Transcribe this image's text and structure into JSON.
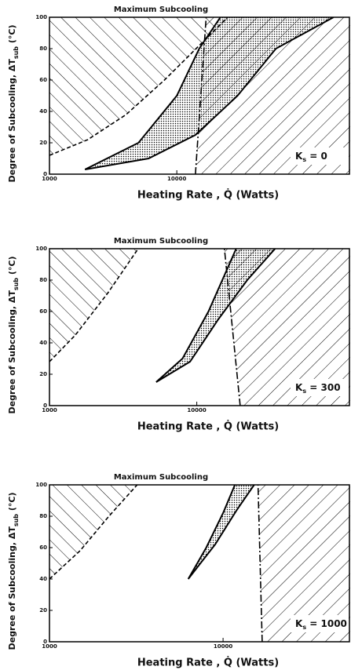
{
  "chart_data": [
    {
      "type": "line",
      "title": "Maximum    Subcooling",
      "x_label": "Heating    Rate ,  Q̇  (Watts)",
      "y_label": "Degree of Subcooling, ΔT",
      "y_label_sub": "sub",
      "y_label_unit": " (°C)",
      "annotation_symbol": "K",
      "annotation_sub": "s",
      "annotation_text": " =      0",
      "log_x": true,
      "xlim": [
        1000,
        230000
      ],
      "xticks": [
        1000,
        10000
      ],
      "ylim": [
        0,
        100
      ],
      "yticks": [
        0,
        20,
        40,
        60,
        80,
        100
      ],
      "series": [
        {
          "color": "#000000",
          "style": "dashed",
          "x": [
            1000,
            2000,
            4000,
            8000,
            15000,
            25000
          ],
          "values": [
            12,
            22,
            38,
            60,
            82,
            100
          ]
        },
        {
          "color": "#000000",
          "style": "solid",
          "x": [
            1900,
            5000,
            10000,
            15000,
            22000
          ],
          "values": [
            3,
            20,
            50,
            80,
            100
          ]
        },
        {
          "color": "#000000",
          "style": "solid",
          "x": [
            1900,
            6000,
            14000,
            30000,
            60000,
            170000
          ],
          "values": [
            3,
            10,
            25,
            50,
            80,
            100
          ]
        },
        {
          "color": "#000000",
          "style": "dashdot",
          "x": [
            14000,
            17000
          ],
          "values": [
            0,
            100
          ]
        }
      ]
    },
    {
      "type": "line",
      "title": "Maximum    Subcooling",
      "x_label": "Heating    Rate ,  Q̇  (Watts)",
      "y_label": "Degree of Subcooling, ΔT",
      "y_label_sub": "sub",
      "y_label_unit": " (°C)",
      "annotation_symbol": "K",
      "annotation_sub": "s",
      "annotation_text": " =   300",
      "log_x": true,
      "xlim": [
        1000,
        110000
      ],
      "xticks": [
        1000,
        10000
      ],
      "ylim": [
        0,
        100
      ],
      "yticks": [
        0,
        20,
        40,
        60,
        80,
        100
      ],
      "series": [
        {
          "color": "#000000",
          "style": "dashed",
          "x": [
            1000,
            1500,
            2500,
            4000
          ],
          "values": [
            28,
            45,
            72,
            100
          ]
        },
        {
          "color": "#000000",
          "style": "solid",
          "x": [
            5300,
            8000,
            12000,
            18500
          ],
          "values": [
            15,
            30,
            60,
            100
          ]
        },
        {
          "color": "#000000",
          "style": "solid",
          "x": [
            5300,
            9000,
            14000,
            22000,
            34000
          ],
          "values": [
            15,
            28,
            55,
            80,
            100
          ]
        },
        {
          "color": "#000000",
          "style": "dashdot",
          "x": [
            19700,
            15400
          ],
          "values": [
            0,
            100
          ]
        }
      ]
    },
    {
      "type": "line",
      "title": "Maximum    Subcooling",
      "x_label": "Heating    Rate ,  Q̇  (Watts)",
      "y_label": "Degree of Subcooling, ΔT",
      "y_label_sub": "sub",
      "y_label_unit": " (°C)",
      "annotation_symbol": "K",
      "annotation_sub": "s",
      "annotation_text": " =  1000",
      "log_x": true,
      "xlim": [
        1000,
        54000
      ],
      "xticks": [
        1000,
        10000
      ],
      "ylim": [
        0,
        100
      ],
      "yticks": [
        0,
        20,
        40,
        60,
        80,
        100
      ],
      "series": [
        {
          "color": "#000000",
          "style": "dashed",
          "x": [
            1000,
            1500,
            2200,
            3200
          ],
          "values": [
            40,
            58,
            80,
            100
          ]
        },
        {
          "color": "#000000",
          "style": "solid",
          "x": [
            6300,
            8000,
            10000,
            11700
          ],
          "values": [
            40,
            60,
            82,
            100
          ]
        },
        {
          "color": "#000000",
          "style": "solid",
          "x": [
            6300,
            9000,
            12000,
            15100
          ],
          "values": [
            40,
            62,
            84,
            100
          ]
        },
        {
          "color": "#000000",
          "style": "dashdot",
          "x": [
            16800,
            15900
          ],
          "values": [
            0,
            100
          ]
        }
      ]
    }
  ]
}
